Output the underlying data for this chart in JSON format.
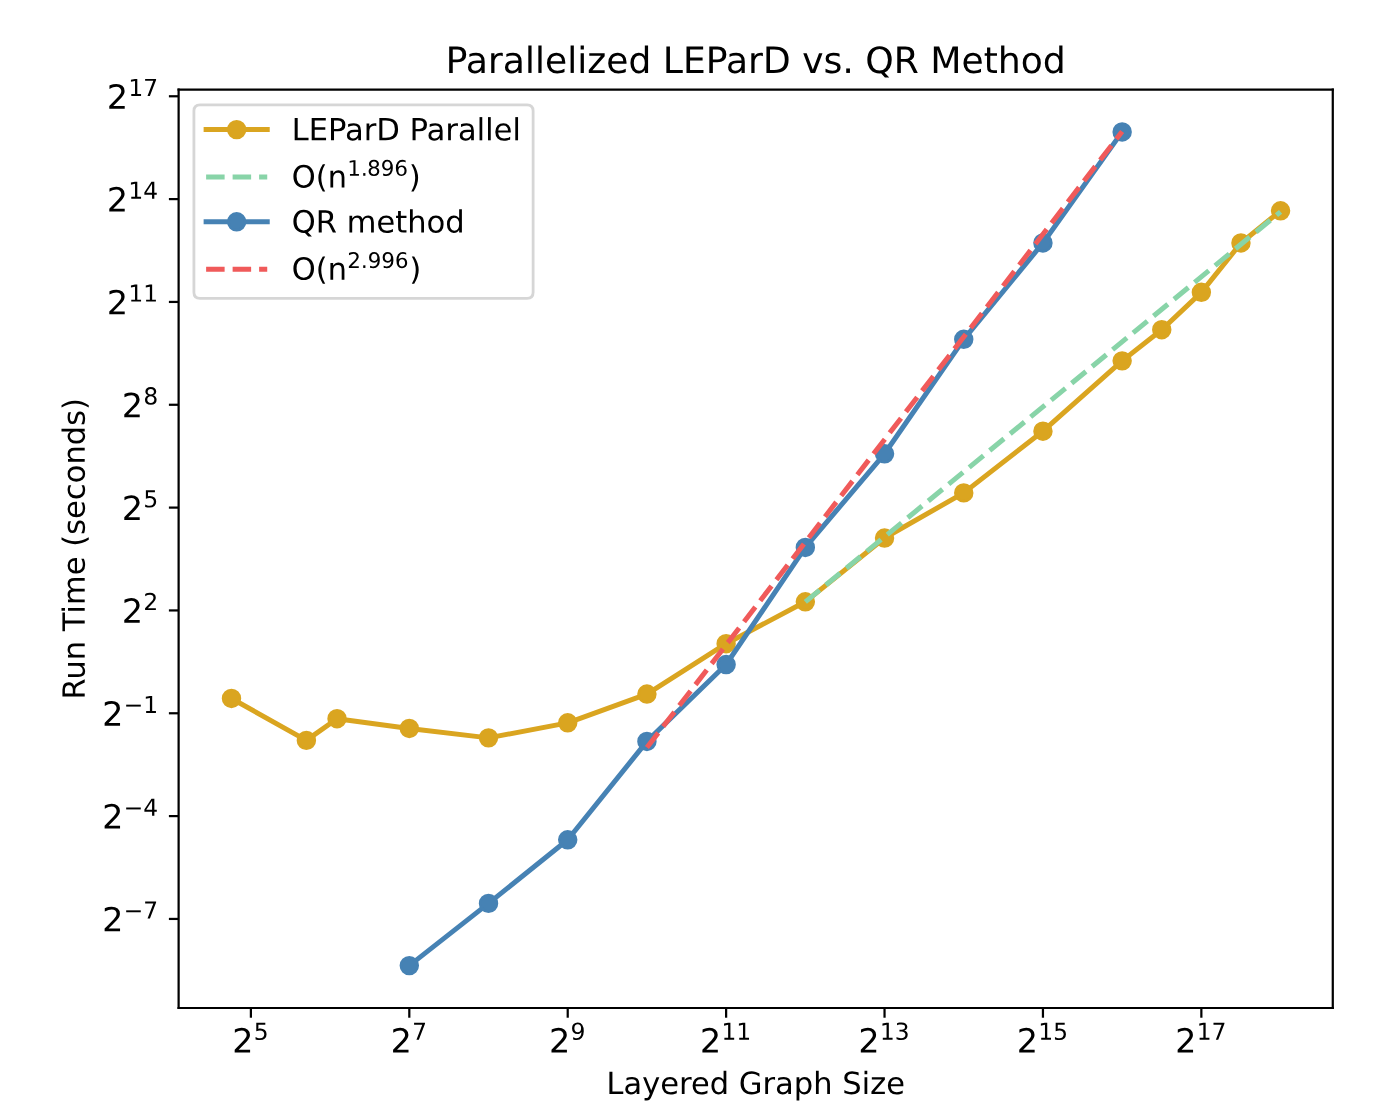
{
  "chart_data": {
    "type": "line",
    "title": "Parallelized LEParD vs. QR Method",
    "xlabel": "Layered Graph Size",
    "ylabel": "Run Time (seconds)",
    "log": "xy",
    "grid": false,
    "legend": "top left",
    "xlim": [
      17,
      414000
    ],
    "ylim": [
      0.00129,
      150000
    ],
    "xticks": [
      {
        "value": 32,
        "label": "2$^{5}$"
      },
      {
        "value": 128,
        "label": "2$^{7}$"
      },
      {
        "value": 512,
        "label": "2$^{9}$"
      },
      {
        "value": 2048,
        "label": "2$^{11}$"
      },
      {
        "value": 8192,
        "label": "2$^{13}$"
      },
      {
        "value": 32768,
        "label": "2$^{15}$"
      },
      {
        "value": 131072,
        "label": "2$^{17}$"
      }
    ],
    "yticks": [
      {
        "value": 0.0078125,
        "label": "2$^{−7}$"
      },
      {
        "value": 0.0625,
        "label": "2$^{−4}$"
      },
      {
        "value": 0.5,
        "label": "2$^{−1}$"
      },
      {
        "value": 4,
        "label": "2$^{2}$"
      },
      {
        "value": 32,
        "label": "2$^{5}$"
      },
      {
        "value": 256,
        "label": "2$^{8}$"
      },
      {
        "value": 2048,
        "label": "2$^{11}$"
      },
      {
        "value": 16384,
        "label": "2$^{14}$"
      },
      {
        "value": 131072,
        "label": "2$^{17}$"
      }
    ],
    "series": [
      {
        "name": "LEParD Parallel",
        "color": "#daa520",
        "marker": "circle",
        "line_style": "solid",
        "x": [
          27,
          52,
          68,
          128,
          256,
          512,
          1024,
          2048,
          4096,
          8192,
          16384,
          32768,
          65536,
          92682,
          131072,
          185364,
          262144
        ],
        "values": [
          0.674,
          0.289,
          0.448,
          0.368,
          0.304,
          0.412,
          0.737,
          2.04,
          4.76,
          17.3,
          43.1,
          150,
          622,
          1168,
          2487,
          6747,
          12940
        ]
      },
      {
        "name": "O(n$^{1.896}$)",
        "color": "#88d4a8",
        "marker": "none",
        "line_style": "dashed",
        "x": [
          4096,
          262144
        ],
        "values": [
          4.76,
          12670
        ]
      },
      {
        "name": "QR method",
        "color": "#4682b4",
        "marker": "circle",
        "line_style": "solid",
        "x": [
          128,
          256,
          512,
          1024,
          2048,
          4096,
          8192,
          16384,
          32768,
          65536
        ],
        "values": [
          0.00304,
          0.0107,
          0.0387,
          0.283,
          1.34,
          14.3,
          95,
          962,
          6747,
          63760
        ]
      },
      {
        "name": "O(n$^{2.996}$)",
        "color": "#f05a5a",
        "marker": "none",
        "line_style": "dashed",
        "x": [
          1024,
          65536
        ],
        "values": [
          0.25,
          64200
        ]
      }
    ]
  }
}
